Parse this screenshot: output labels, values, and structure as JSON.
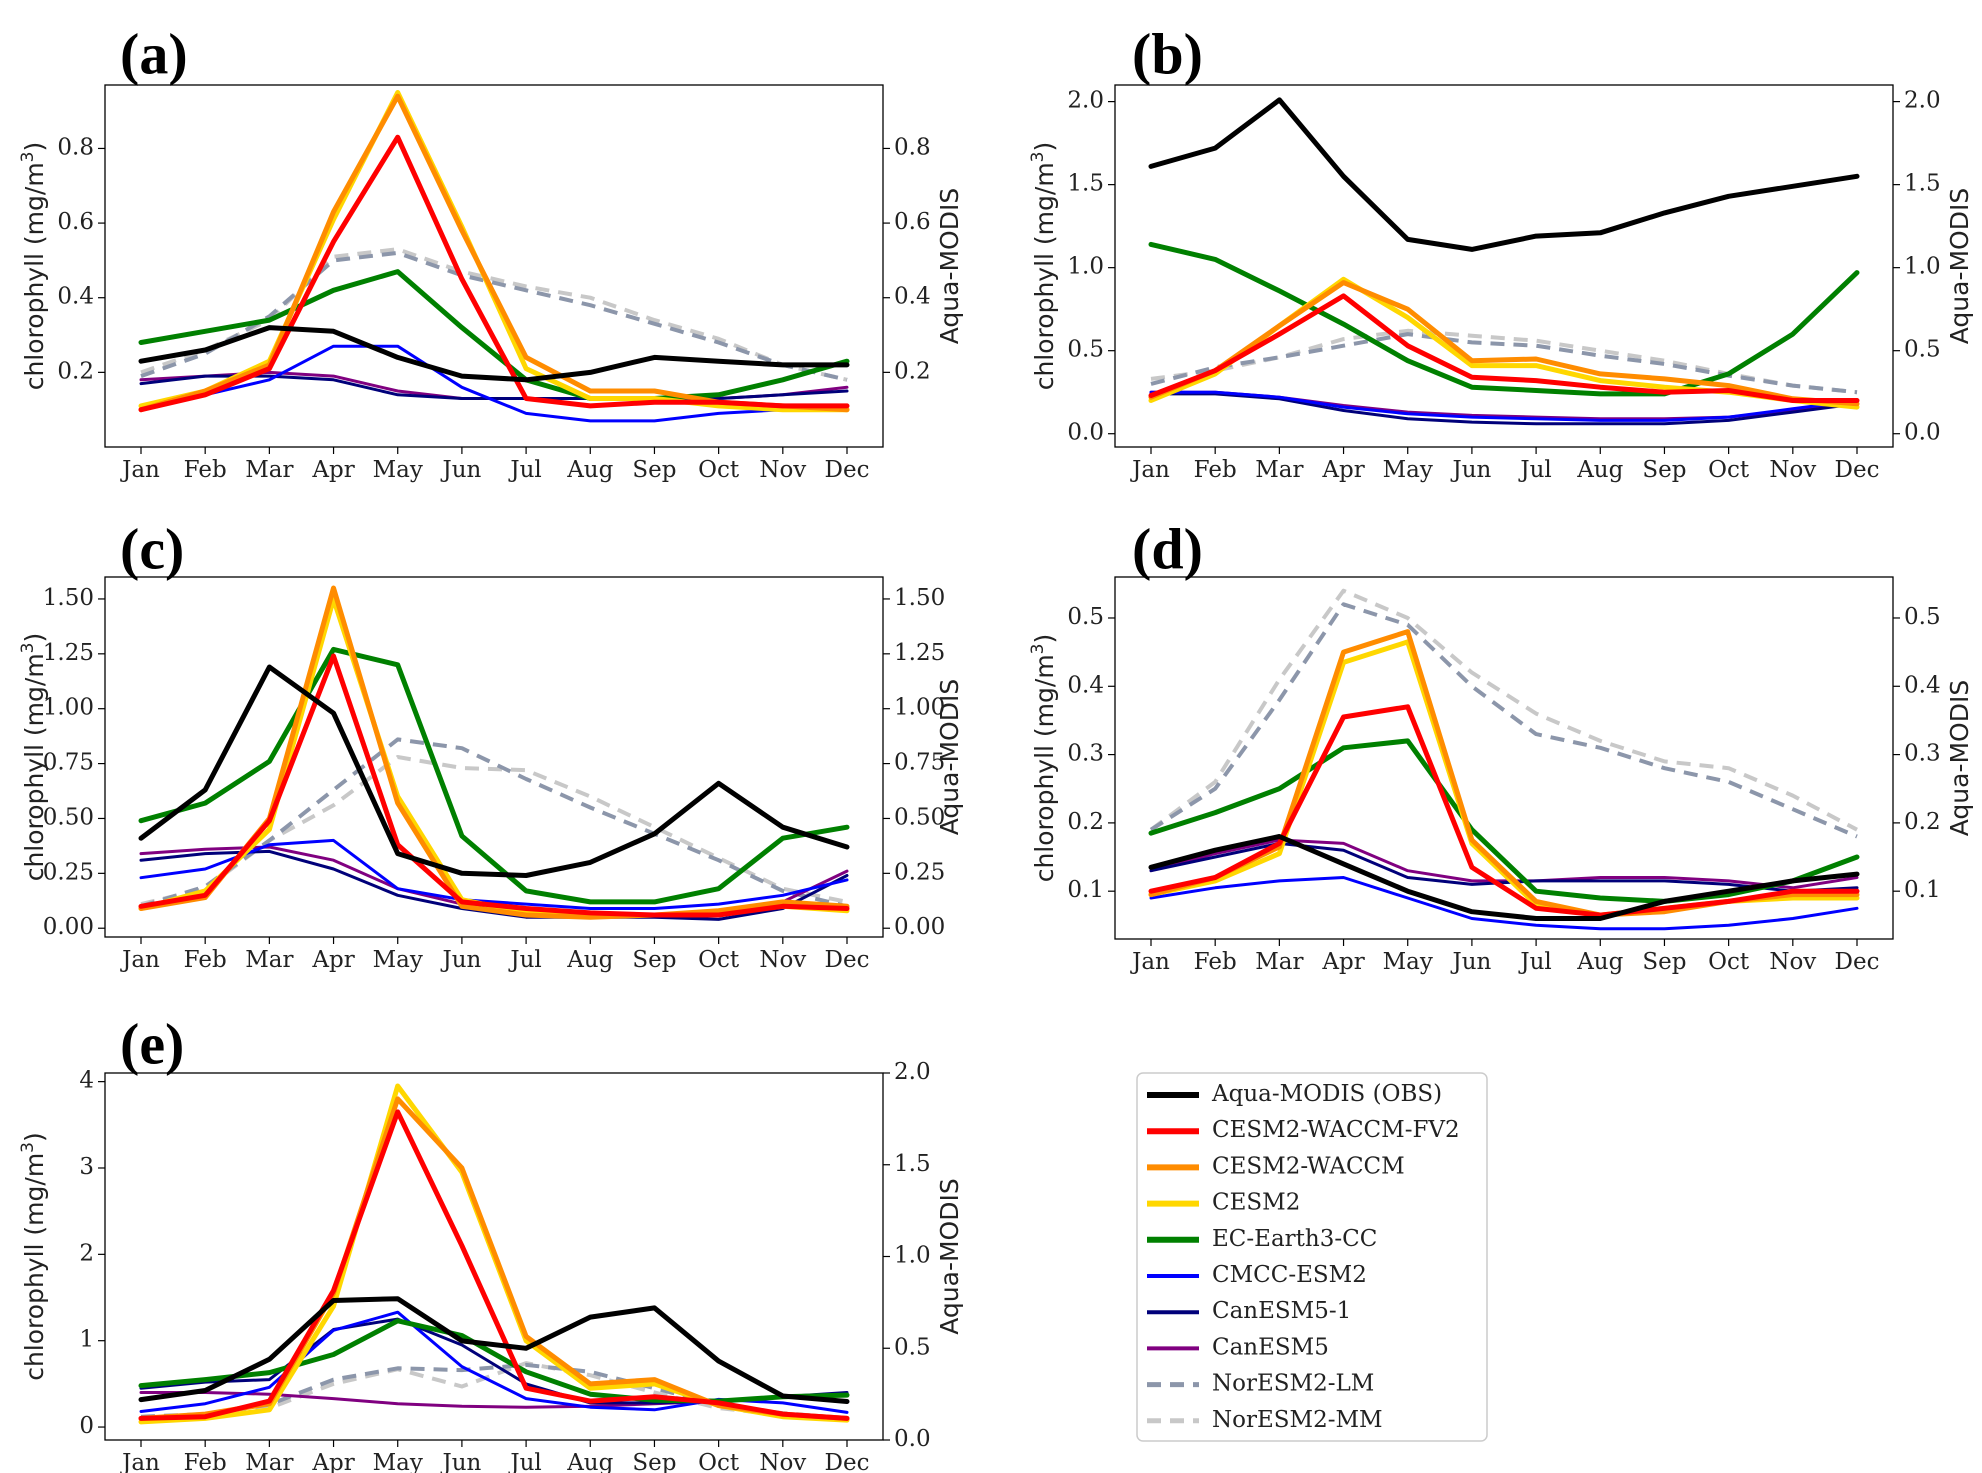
{
  "figure": {
    "months": [
      "Jan",
      "Feb",
      "Mar",
      "Apr",
      "May",
      "Jun",
      "Jul",
      "Aug",
      "Sep",
      "Oct",
      "Nov",
      "Dec"
    ],
    "left_axis_label": "chlorophyll (mg/m",
    "left_axis_label_sup": "3",
    "left_axis_label_end": ")",
    "right_axis_label": "Aqua-MODIS"
  },
  "legend": {
    "entries": [
      {
        "name": "Aqua-MODIS (OBS)",
        "color": "#000000",
        "dash": false,
        "width": 5
      },
      {
        "name": "CESM2-WACCM-FV2",
        "color": "#ff0000",
        "dash": false,
        "width": 5
      },
      {
        "name": "CESM2-WACCM",
        "color": "#ff8c00",
        "dash": false,
        "width": 5
      },
      {
        "name": "CESM2",
        "color": "#ffd700",
        "dash": false,
        "width": 5
      },
      {
        "name": "EC-Earth3-CC",
        "color": "#008000",
        "dash": false,
        "width": 5
      },
      {
        "name": "CMCC-ESM2",
        "color": "#0000ff",
        "dash": false,
        "width": 3
      },
      {
        "name": "CanESM5-1",
        "color": "#00007a",
        "dash": false,
        "width": 3
      },
      {
        "name": "CanESM5",
        "color": "#800080",
        "dash": false,
        "width": 3
      },
      {
        "name": "NorESM2-LM",
        "color": "#8c96aa",
        "dash": true,
        "width": 4
      },
      {
        "name": "NorESM2-MM",
        "color": "#c8c8c8",
        "dash": true,
        "width": 4
      }
    ]
  },
  "chart_data": [
    {
      "type": "line",
      "label": "(a)",
      "x": [
        "Jan",
        "Feb",
        "Mar",
        "Apr",
        "May",
        "Jun",
        "Jul",
        "Aug",
        "Sep",
        "Oct",
        "Nov",
        "Dec"
      ],
      "ylim": [
        0.0,
        0.97
      ],
      "left_ticks": [
        "0.2",
        "0.4",
        "0.6",
        "0.8"
      ],
      "right_ylim": [
        0.0,
        0.97
      ],
      "right_ticks": [
        "0.2",
        "0.4",
        "0.6",
        "0.8"
      ],
      "obs_axis": "right",
      "series": [
        {
          "name": "NorESM2-MM",
          "values": [
            0.2,
            0.26,
            0.34,
            0.51,
            0.53,
            0.47,
            0.43,
            0.4,
            0.34,
            0.29,
            0.22,
            0.18
          ]
        },
        {
          "name": "NorESM2-LM",
          "values": [
            0.19,
            0.25,
            0.35,
            0.5,
            0.52,
            0.46,
            0.42,
            0.38,
            0.33,
            0.28,
            0.22,
            0.18
          ]
        },
        {
          "name": "CanESM5",
          "values": [
            0.18,
            0.19,
            0.2,
            0.19,
            0.15,
            0.13,
            0.13,
            0.13,
            0.13,
            0.13,
            0.14,
            0.16
          ]
        },
        {
          "name": "CanESM5-1",
          "values": [
            0.17,
            0.19,
            0.19,
            0.18,
            0.14,
            0.13,
            0.13,
            0.13,
            0.13,
            0.13,
            0.14,
            0.15
          ]
        },
        {
          "name": "CMCC-ESM2",
          "values": [
            0.11,
            0.14,
            0.18,
            0.27,
            0.27,
            0.16,
            0.09,
            0.07,
            0.07,
            0.09,
            0.1,
            0.1
          ]
        },
        {
          "name": "EC-Earth3-CC",
          "values": [
            0.28,
            0.31,
            0.34,
            0.42,
            0.47,
            0.32,
            0.18,
            0.13,
            0.13,
            0.14,
            0.18,
            0.23
          ]
        },
        {
          "name": "CESM2",
          "values": [
            0.11,
            0.15,
            0.23,
            0.61,
            0.95,
            0.59,
            0.21,
            0.13,
            0.13,
            0.11,
            0.1,
            0.1
          ]
        },
        {
          "name": "CESM2-WACCM",
          "values": [
            0.1,
            0.15,
            0.22,
            0.63,
            0.94,
            0.58,
            0.24,
            0.15,
            0.15,
            0.12,
            0.11,
            0.1
          ]
        },
        {
          "name": "CESM2-WACCM-FV2",
          "values": [
            0.1,
            0.14,
            0.21,
            0.55,
            0.83,
            0.45,
            0.13,
            0.11,
            0.12,
            0.12,
            0.11,
            0.11
          ]
        },
        {
          "name": "Aqua-MODIS (OBS)",
          "values": [
            0.23,
            0.26,
            0.32,
            0.31,
            0.24,
            0.19,
            0.18,
            0.2,
            0.24,
            0.23,
            0.22,
            0.22
          ]
        }
      ]
    },
    {
      "type": "line",
      "label": "(b)",
      "x": [
        "Jan",
        "Feb",
        "Mar",
        "Apr",
        "May",
        "Jun",
        "Jul",
        "Aug",
        "Sep",
        "Oct",
        "Nov",
        "Dec"
      ],
      "ylim": [
        -0.08,
        2.1
      ],
      "left_ticks": [
        "0.0",
        "0.5",
        "1.0",
        "1.5",
        "2.0"
      ],
      "right_ylim": [
        -0.08,
        2.1
      ],
      "right_ticks": [
        "0.0",
        "0.5",
        "1.0",
        "1.5",
        "2.0"
      ],
      "obs_axis": "right",
      "series": [
        {
          "name": "NorESM2-MM",
          "values": [
            0.33,
            0.38,
            0.46,
            0.57,
            0.62,
            0.59,
            0.56,
            0.5,
            0.44,
            0.36,
            0.29,
            0.25
          ]
        },
        {
          "name": "NorESM2-LM",
          "values": [
            0.3,
            0.4,
            0.46,
            0.53,
            0.6,
            0.55,
            0.53,
            0.47,
            0.42,
            0.35,
            0.29,
            0.25
          ]
        },
        {
          "name": "CanESM5",
          "values": [
            0.25,
            0.25,
            0.22,
            0.17,
            0.13,
            0.11,
            0.1,
            0.09,
            0.09,
            0.1,
            0.14,
            0.2
          ]
        },
        {
          "name": "CanESM5-1",
          "values": [
            0.24,
            0.24,
            0.21,
            0.14,
            0.09,
            0.07,
            0.06,
            0.06,
            0.06,
            0.08,
            0.13,
            0.18
          ]
        },
        {
          "name": "CMCC-ESM2",
          "values": [
            0.25,
            0.25,
            0.22,
            0.16,
            0.12,
            0.1,
            0.09,
            0.08,
            0.08,
            0.1,
            0.15,
            0.2
          ]
        },
        {
          "name": "EC-Earth3-CC",
          "values": [
            1.14,
            1.05,
            0.86,
            0.66,
            0.44,
            0.28,
            0.26,
            0.24,
            0.24,
            0.36,
            0.6,
            0.97
          ]
        },
        {
          "name": "CESM2",
          "values": [
            0.2,
            0.36,
            0.65,
            0.93,
            0.7,
            0.41,
            0.41,
            0.32,
            0.28,
            0.25,
            0.2,
            0.16
          ]
        },
        {
          "name": "CESM2-WACCM",
          "values": [
            0.22,
            0.38,
            0.65,
            0.91,
            0.75,
            0.44,
            0.45,
            0.36,
            0.33,
            0.29,
            0.21,
            0.18
          ]
        },
        {
          "name": "CESM2-WACCM-FV2",
          "values": [
            0.23,
            0.38,
            0.6,
            0.83,
            0.53,
            0.34,
            0.32,
            0.28,
            0.25,
            0.26,
            0.2,
            0.2
          ]
        },
        {
          "name": "Aqua-MODIS (OBS)",
          "values": [
            1.61,
            1.72,
            2.01,
            1.55,
            1.17,
            1.11,
            1.19,
            1.21,
            1.33,
            1.43,
            1.49,
            1.55
          ]
        }
      ]
    },
    {
      "type": "line",
      "label": "(c)",
      "x": [
        "Jan",
        "Feb",
        "Mar",
        "Apr",
        "May",
        "Jun",
        "Jul",
        "Aug",
        "Sep",
        "Oct",
        "Nov",
        "Dec"
      ],
      "ylim": [
        -0.04,
        1.6
      ],
      "left_ticks": [
        "0.00",
        "0.25",
        "0.50",
        "0.75",
        "1.00",
        "1.25",
        "1.50"
      ],
      "right_ylim": [
        -0.04,
        1.6
      ],
      "right_ticks": [
        "0.00",
        "0.25",
        "0.50",
        "0.75",
        "1.00",
        "1.25",
        "1.50"
      ],
      "obs_axis": "right",
      "series": [
        {
          "name": "NorESM2-MM",
          "values": [
            0.11,
            0.18,
            0.4,
            0.56,
            0.78,
            0.73,
            0.72,
            0.6,
            0.46,
            0.32,
            0.18,
            0.12
          ]
        },
        {
          "name": "NorESM2-LM",
          "values": [
            0.1,
            0.19,
            0.4,
            0.63,
            0.86,
            0.82,
            0.68,
            0.55,
            0.43,
            0.31,
            0.17,
            0.1
          ]
        },
        {
          "name": "CanESM5",
          "values": [
            0.34,
            0.36,
            0.37,
            0.31,
            0.18,
            0.11,
            0.08,
            0.06,
            0.06,
            0.07,
            0.12,
            0.26
          ]
        },
        {
          "name": "CanESM5-1",
          "values": [
            0.31,
            0.34,
            0.35,
            0.27,
            0.15,
            0.09,
            0.05,
            0.05,
            0.05,
            0.04,
            0.09,
            0.24
          ]
        },
        {
          "name": "CMCC-ESM2",
          "values": [
            0.23,
            0.27,
            0.38,
            0.4,
            0.18,
            0.13,
            0.11,
            0.09,
            0.09,
            0.11,
            0.15,
            0.22
          ]
        },
        {
          "name": "EC-Earth3-CC",
          "values": [
            0.49,
            0.57,
            0.76,
            1.27,
            1.2,
            0.42,
            0.17,
            0.12,
            0.12,
            0.18,
            0.41,
            0.46
          ]
        },
        {
          "name": "CESM2",
          "values": [
            0.09,
            0.17,
            0.45,
            1.5,
            0.6,
            0.13,
            0.07,
            0.06,
            0.06,
            0.07,
            0.1,
            0.08
          ]
        },
        {
          "name": "CESM2-WACCM",
          "values": [
            0.09,
            0.14,
            0.5,
            1.55,
            0.57,
            0.1,
            0.06,
            0.05,
            0.06,
            0.08,
            0.12,
            0.1
          ]
        },
        {
          "name": "CESM2-WACCM-FV2",
          "values": [
            0.1,
            0.15,
            0.49,
            1.24,
            0.38,
            0.12,
            0.09,
            0.07,
            0.06,
            0.06,
            0.1,
            0.09
          ]
        },
        {
          "name": "Aqua-MODIS (OBS)",
          "values": [
            0.41,
            0.63,
            1.19,
            0.98,
            0.34,
            0.25,
            0.24,
            0.3,
            0.43,
            0.66,
            0.46,
            0.37
          ]
        }
      ]
    },
    {
      "type": "line",
      "label": "(d)",
      "x": [
        "Jan",
        "Feb",
        "Mar",
        "Apr",
        "May",
        "Jun",
        "Jul",
        "Aug",
        "Sep",
        "Oct",
        "Nov",
        "Dec"
      ],
      "ylim": [
        0.03,
        0.56
      ],
      "left_ticks": [
        "0.1",
        "0.2",
        "0.3",
        "0.4",
        "0.5"
      ],
      "right_ylim": [
        0.03,
        0.56
      ],
      "right_ticks": [
        "0.1",
        "0.2",
        "0.3",
        "0.4",
        "0.5"
      ],
      "obs_axis": "right",
      "series": [
        {
          "name": "NorESM2-MM",
          "values": [
            0.19,
            0.26,
            0.41,
            0.54,
            0.5,
            0.42,
            0.36,
            0.32,
            0.29,
            0.28,
            0.24,
            0.19
          ]
        },
        {
          "name": "NorESM2-LM",
          "values": [
            0.19,
            0.25,
            0.38,
            0.52,
            0.49,
            0.4,
            0.33,
            0.31,
            0.28,
            0.26,
            0.22,
            0.18
          ]
        },
        {
          "name": "CanESM5",
          "values": [
            0.13,
            0.155,
            0.175,
            0.17,
            0.13,
            0.115,
            0.115,
            0.12,
            0.12,
            0.115,
            0.105,
            0.12
          ]
        },
        {
          "name": "CanESM5-1",
          "values": [
            0.13,
            0.15,
            0.17,
            0.16,
            0.12,
            0.11,
            0.115,
            0.115,
            0.115,
            0.11,
            0.1,
            0.105
          ]
        },
        {
          "name": "CMCC-ESM2",
          "values": [
            0.09,
            0.105,
            0.115,
            0.12,
            0.09,
            0.06,
            0.05,
            0.045,
            0.045,
            0.05,
            0.06,
            0.075
          ]
        },
        {
          "name": "EC-Earth3-CC",
          "values": [
            0.185,
            0.215,
            0.25,
            0.31,
            0.32,
            0.19,
            0.1,
            0.09,
            0.085,
            0.095,
            0.115,
            0.15
          ]
        },
        {
          "name": "CESM2",
          "values": [
            0.095,
            0.115,
            0.155,
            0.435,
            0.465,
            0.17,
            0.08,
            0.065,
            0.075,
            0.085,
            0.09,
            0.09
          ]
        },
        {
          "name": "CESM2-WACCM",
          "values": [
            0.095,
            0.12,
            0.165,
            0.45,
            0.48,
            0.175,
            0.085,
            0.065,
            0.07,
            0.085,
            0.095,
            0.095
          ]
        },
        {
          "name": "CESM2-WACCM-FV2",
          "values": [
            0.1,
            0.12,
            0.17,
            0.355,
            0.37,
            0.135,
            0.075,
            0.065,
            0.075,
            0.085,
            0.1,
            0.1
          ]
        },
        {
          "name": "Aqua-MODIS (OBS)",
          "values": [
            0.135,
            0.16,
            0.18,
            0.14,
            0.1,
            0.07,
            0.06,
            0.06,
            0.085,
            0.1,
            0.115,
            0.125
          ]
        }
      ]
    },
    {
      "type": "line",
      "label": "(e)",
      "x": [
        "Jan",
        "Feb",
        "Mar",
        "Apr",
        "May",
        "Jun",
        "Jul",
        "Aug",
        "Sep",
        "Oct",
        "Nov",
        "Dec"
      ],
      "ylim": [
        -0.15,
        4.1
      ],
      "left_ticks": [
        "0",
        "1",
        "2",
        "3",
        "4"
      ],
      "right_ylim": [
        0.0,
        2.0
      ],
      "right_ticks": [
        "0.0",
        "0.5",
        "1.0",
        "1.5",
        "2.0"
      ],
      "obs_axis": "right",
      "series": [
        {
          "name": "NorESM2-MM",
          "values": [
            0.1,
            0.12,
            0.22,
            0.5,
            0.67,
            0.47,
            0.74,
            0.6,
            0.4,
            0.22,
            0.14,
            0.1
          ]
        },
        {
          "name": "NorESM2-LM",
          "values": [
            0.12,
            0.15,
            0.26,
            0.55,
            0.68,
            0.66,
            0.72,
            0.64,
            0.45,
            0.26,
            0.16,
            0.1
          ]
        },
        {
          "name": "CanESM5",
          "values": [
            0.4,
            0.4,
            0.38,
            0.33,
            0.27,
            0.24,
            0.23,
            0.24,
            0.27,
            0.3,
            0.35,
            0.38
          ]
        },
        {
          "name": "CanESM5-1",
          "values": [
            0.45,
            0.52,
            0.55,
            1.13,
            1.25,
            0.95,
            0.5,
            0.28,
            0.28,
            0.3,
            0.35,
            0.4
          ]
        },
        {
          "name": "CMCC-ESM2",
          "values": [
            0.18,
            0.27,
            0.46,
            1.12,
            1.33,
            0.7,
            0.33,
            0.23,
            0.2,
            0.32,
            0.28,
            0.17
          ]
        },
        {
          "name": "EC-Earth3-CC",
          "values": [
            0.48,
            0.55,
            0.63,
            0.84,
            1.23,
            1.06,
            0.64,
            0.38,
            0.31,
            0.3,
            0.35,
            0.37
          ]
        },
        {
          "name": "CESM2",
          "values": [
            0.06,
            0.1,
            0.2,
            1.4,
            3.95,
            2.95,
            1.0,
            0.45,
            0.5,
            0.25,
            0.12,
            0.08
          ]
        },
        {
          "name": "CESM2-WACCM",
          "values": [
            0.1,
            0.15,
            0.27,
            1.55,
            3.8,
            3.0,
            1.05,
            0.5,
            0.55,
            0.25,
            0.15,
            0.1
          ]
        },
        {
          "name": "CESM2-WACCM-FV2",
          "values": [
            0.1,
            0.12,
            0.3,
            1.58,
            3.65,
            2.1,
            0.45,
            0.3,
            0.35,
            0.28,
            0.15,
            0.1
          ]
        },
        {
          "name": "Aqua-MODIS (OBS)",
          "values": [
            0.22,
            0.27,
            0.44,
            0.76,
            0.77,
            0.54,
            0.5,
            0.67,
            0.72,
            0.43,
            0.24,
            0.21
          ]
        }
      ]
    }
  ]
}
